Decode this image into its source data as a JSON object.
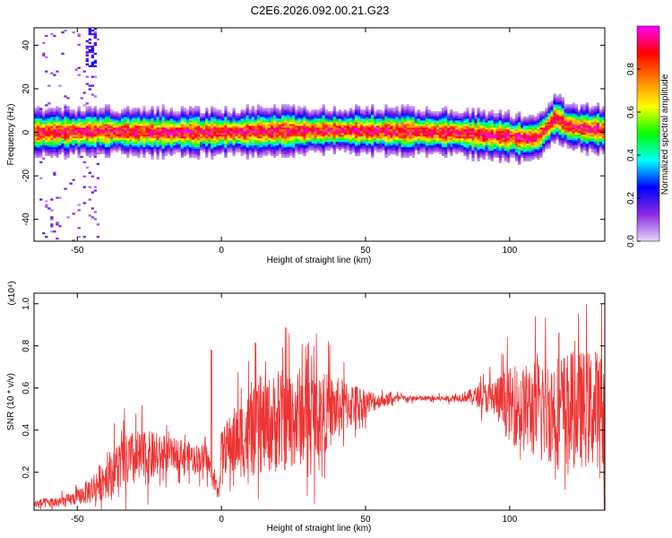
{
  "title": "C2E6.2026.092.00.21.G23",
  "chart_data": [
    {
      "type": "heatmap",
      "title": "",
      "xlabel": "Height of straight line (km)",
      "ylabel": "Frequency (Hz)",
      "xlim": [
        -65,
        133
      ],
      "ylim": [
        -50,
        48
      ],
      "xticks": [
        -50,
        0,
        50,
        100
      ],
      "yticks": [
        -40,
        -20,
        0,
        20,
        40
      ],
      "grid": false,
      "ridge_center_hz": [
        [
          -65,
          0
        ],
        [
          -40,
          0.5
        ],
        [
          -20,
          0
        ],
        [
          0,
          0
        ],
        [
          20,
          0.5
        ],
        [
          40,
          1
        ],
        [
          60,
          0.5
        ],
        [
          80,
          0
        ],
        [
          90,
          -1
        ],
        [
          100,
          -2
        ],
        [
          105,
          -3
        ],
        [
          110,
          -2
        ],
        [
          113,
          2
        ],
        [
          116,
          7
        ],
        [
          120,
          3
        ],
        [
          125,
          2
        ],
        [
          133,
          1
        ]
      ],
      "colorbar": {
        "label": "Normalized spectral amplitude",
        "range": [
          0,
          1
        ],
        "ticks": [
          0.0,
          0.2,
          0.4,
          0.6,
          0.8
        ],
        "tick_labels": [
          "0.0",
          "0.2",
          "0.4",
          "0.6",
          "0.8"
        ],
        "colors": [
          "#e6d6fa",
          "#8a2be2",
          "#0000ff",
          "#00ffff",
          "#00ff00",
          "#ffff00",
          "#ff8000",
          "#ff0000",
          "#ff00ff"
        ]
      }
    },
    {
      "type": "line",
      "title": "",
      "xlabel": "Height of straight line (km)",
      "ylabel": "SNR (10 * v/v)",
      "y_multiplier": "(x10⁴)",
      "xlim": [
        -65,
        133
      ],
      "ylim": [
        0.02,
        1.05
      ],
      "xticks": [
        -50,
        0,
        50,
        100
      ],
      "yticks": [
        0.2,
        0.4,
        0.6,
        0.8,
        1.0
      ],
      "ytick_labels": [
        "0.2",
        "0.4",
        "0.6",
        "0.8",
        "1.0"
      ],
      "color": "#ee3333",
      "series": [
        {
          "x": [
            -65,
            -55,
            -50,
            -45,
            -40,
            -35,
            -30,
            -25,
            -20,
            -15,
            -10,
            -5,
            -1,
            0,
            5,
            10,
            15,
            20,
            25,
            30,
            35,
            40,
            45,
            50,
            55,
            60,
            65,
            70,
            75,
            80,
            85,
            90,
            95,
            100,
            105,
            110,
            115,
            120,
            125,
            130,
            133
          ],
          "values": [
            0.05,
            0.06,
            0.08,
            0.12,
            0.18,
            0.24,
            0.26,
            0.27,
            0.28,
            0.29,
            0.27,
            0.26,
            0.1,
            0.3,
            0.35,
            0.38,
            0.42,
            0.44,
            0.46,
            0.47,
            0.48,
            0.5,
            0.52,
            0.53,
            0.54,
            0.55,
            0.55,
            0.55,
            0.55,
            0.55,
            0.56,
            0.56,
            0.55,
            0.52,
            0.5,
            0.5,
            0.5,
            0.5,
            0.5,
            0.5,
            0.5
          ],
          "spread": [
            0.03,
            0.04,
            0.05,
            0.1,
            0.15,
            0.18,
            0.2,
            0.18,
            0.12,
            0.1,
            0.1,
            0.1,
            0.05,
            0.15,
            0.25,
            0.3,
            0.32,
            0.35,
            0.35,
            0.33,
            0.28,
            0.22,
            0.16,
            0.1,
            0.05,
            0.03,
            0.02,
            0.02,
            0.02,
            0.02,
            0.04,
            0.08,
            0.15,
            0.25,
            0.3,
            0.35,
            0.38,
            0.4,
            0.4,
            0.4,
            0.4
          ]
        }
      ]
    }
  ]
}
